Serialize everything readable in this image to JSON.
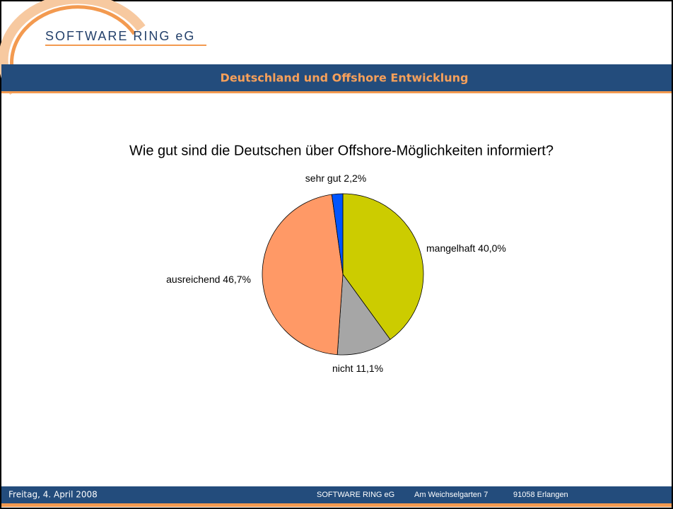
{
  "logo": "SOFTWARE RING eG",
  "header": {
    "title": "Deutschland und Offshore Entwicklung"
  },
  "footer": {
    "date": "Freitag, 4. April 2008",
    "company": "SOFTWARE RING eG",
    "street": "Am Weichselgarten 7",
    "city": "91058 Erlangen"
  },
  "chart_data": {
    "type": "pie",
    "title": "Wie gut sind die Deutschen über Offshore-Möglichkeiten informiert?",
    "categories": [
      "mangelhaft",
      "nicht",
      "ausreichend",
      "sehr gut"
    ],
    "values": [
      40.0,
      11.1,
      46.7,
      2.2
    ],
    "value_labels": [
      "40,0%",
      "11,1%",
      "46,7%",
      "2,2%"
    ],
    "colors": [
      "#cccc00",
      "#a6a6a6",
      "#ff9966",
      "#0055ff"
    ]
  }
}
